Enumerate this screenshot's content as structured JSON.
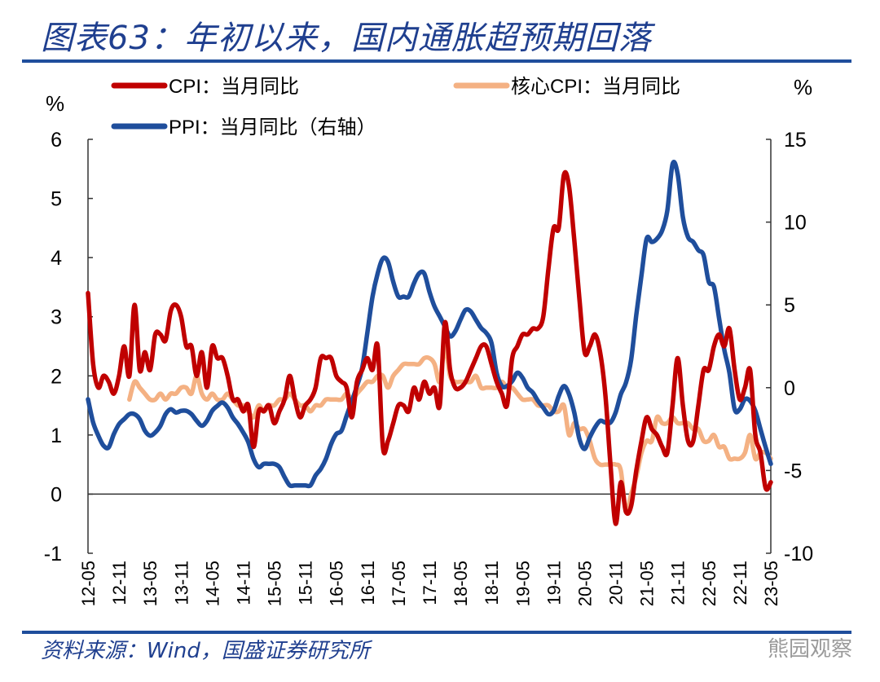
{
  "header": {
    "title": "图表63：年初以来，国内通胀超预期回落"
  },
  "footer": {
    "source": "资料来源：Wind，国盛证券研究所",
    "watermark": "熊园观察"
  },
  "chart_data": {
    "type": "line",
    "left_unit": "%",
    "right_unit": "%",
    "left_ylim": [
      -1,
      6
    ],
    "left_ticks": [
      "6",
      "5",
      "4",
      "3",
      "2",
      "1",
      "0",
      "-1"
    ],
    "right_ylim": [
      -10,
      15
    ],
    "right_ticks": [
      "15",
      "10",
      "5",
      "0",
      "-5",
      "-10"
    ],
    "x_start": "2012-05",
    "x_tick_labels": [
      "12-05",
      "12-11",
      "13-05",
      "13-11",
      "14-05",
      "14-11",
      "15-05",
      "15-11",
      "16-05",
      "16-11",
      "17-05",
      "17-11",
      "18-05",
      "18-11",
      "19-05",
      "19-11",
      "20-05",
      "20-11",
      "21-05",
      "21-11",
      "22-05",
      "22-11",
      "23-05"
    ],
    "grid": false,
    "legend_placement": "top",
    "series": [
      {
        "name": "CPI：当月同比",
        "axis": "left",
        "color": "#C00000",
        "values": [
          3.4,
          2.2,
          1.8,
          2.0,
          1.9,
          1.7,
          2.0,
          2.5,
          2.0,
          3.2,
          2.1,
          2.4,
          2.1,
          2.7,
          2.7,
          2.6,
          3.1,
          3.2,
          3.0,
          2.5,
          2.5,
          2.0,
          2.4,
          1.8,
          2.5,
          2.3,
          2.3,
          2.0,
          1.6,
          1.6,
          1.4,
          1.5,
          0.8,
          1.4,
          1.4,
          1.5,
          1.2,
          1.4,
          1.6,
          2.0,
          1.6,
          1.3,
          1.5,
          1.6,
          1.8,
          2.3,
          2.3,
          2.3,
          2.0,
          1.9,
          1.8,
          1.3,
          1.9,
          2.1,
          2.3,
          2.1,
          2.5,
          0.8,
          0.9,
          1.2,
          1.5,
          1.5,
          1.4,
          1.8,
          1.6,
          1.9,
          1.7,
          1.8,
          1.5,
          2.9,
          2.1,
          1.8,
          1.8,
          1.9,
          2.1,
          2.3,
          2.5,
          2.5,
          2.2,
          1.9,
          1.7,
          1.5,
          2.3,
          2.5,
          2.7,
          2.7,
          2.8,
          2.8,
          3.0,
          3.8,
          4.5,
          4.5,
          5.4,
          5.2,
          4.3,
          3.3,
          2.4,
          2.5,
          2.7,
          2.4,
          1.7,
          0.5,
          -0.5,
          0.2,
          -0.3,
          -0.2,
          0.4,
          0.9,
          1.3,
          1.1,
          1.0,
          0.8,
          0.7,
          1.5,
          2.3,
          1.5,
          0.9,
          0.9,
          1.5,
          2.1,
          2.1,
          2.5,
          2.7,
          2.5,
          2.8,
          2.1,
          1.6,
          1.8,
          2.1,
          1.0,
          0.7,
          0.1,
          0.2
        ]
      },
      {
        "name": "核心CPI：当月同比",
        "axis": "left",
        "color": "#F4B183",
        "values": [
          null,
          null,
          null,
          null,
          null,
          null,
          null,
          null,
          1.6,
          1.9,
          1.8,
          1.7,
          1.6,
          1.6,
          1.7,
          1.6,
          1.7,
          1.7,
          1.8,
          1.8,
          1.7,
          2.0,
          1.7,
          1.6,
          1.7,
          1.6,
          1.6,
          1.7,
          1.6,
          1.5,
          1.5,
          1.4,
          1.3,
          1.5,
          1.4,
          1.5,
          1.5,
          1.6,
          1.6,
          1.7,
          1.6,
          1.5,
          1.5,
          1.4,
          1.5,
          1.5,
          1.6,
          1.6,
          1.6,
          1.6,
          1.7,
          1.6,
          1.7,
          1.8,
          1.9,
          1.9,
          2.0,
          2.0,
          1.8,
          2.0,
          2.1,
          2.2,
          2.2,
          2.2,
          2.2,
          2.3,
          2.3,
          2.2,
          1.9,
          2.5,
          2.0,
          1.9,
          1.9,
          1.9,
          1.9,
          2.0,
          1.8,
          1.8,
          1.8,
          1.8,
          1.9,
          1.8,
          1.8,
          1.7,
          1.6,
          1.6,
          1.6,
          1.5,
          1.5,
          1.5,
          1.4,
          1.4,
          1.5,
          1.0,
          1.2,
          1.1,
          1.1,
          0.9,
          0.6,
          0.5,
          0.5,
          0.5,
          0.5,
          0.4,
          -0.3,
          0.0,
          0.3,
          0.7,
          0.9,
          0.9,
          1.3,
          1.2,
          1.2,
          1.3,
          1.2,
          1.2,
          1.2,
          1.1,
          1.1,
          0.9,
          0.9,
          1.0,
          0.8,
          0.8,
          0.6,
          0.6,
          0.6,
          0.7,
          1.0,
          0.6,
          0.7,
          0.7,
          0.6
        ]
      },
      {
        "name": "PPI：当月同比（右轴）",
        "axis": "right",
        "color": "#1F4E9C",
        "values": [
          -0.7,
          -2.1,
          -2.9,
          -3.5,
          -3.6,
          -2.8,
          -2.2,
          -1.9,
          -1.6,
          -1.6,
          -1.9,
          -2.6,
          -2.9,
          -2.7,
          -2.3,
          -1.6,
          -1.3,
          -1.5,
          -1.4,
          -1.4,
          -1.6,
          -2.0,
          -2.3,
          -2.0,
          -1.4,
          -1.1,
          -0.9,
          -1.2,
          -1.8,
          -2.2,
          -2.7,
          -3.3,
          -4.3,
          -4.8,
          -4.6,
          -4.6,
          -4.6,
          -4.8,
          -5.4,
          -5.9,
          -5.9,
          -5.9,
          -5.9,
          -5.9,
          -5.3,
          -4.9,
          -4.3,
          -3.4,
          -2.8,
          -2.6,
          -1.7,
          -0.8,
          0.1,
          1.2,
          3.3,
          5.5,
          6.9,
          7.8,
          7.6,
          6.4,
          5.5,
          5.5,
          5.5,
          6.3,
          6.9,
          6.9,
          5.8,
          4.9,
          4.3,
          3.7,
          3.1,
          3.4,
          4.1,
          4.7,
          4.6,
          4.1,
          3.6,
          3.3,
          2.7,
          0.9,
          0.1,
          0.1,
          0.4,
          0.9,
          0.6,
          0.0,
          -0.3,
          -0.8,
          -1.2,
          -1.6,
          -1.4,
          -0.5,
          0.1,
          -0.4,
          -1.5,
          -3.1,
          -3.7,
          -3.0,
          -2.4,
          -2.0,
          -2.1,
          -2.1,
          -1.5,
          -0.4,
          0.3,
          1.7,
          4.4,
          6.8,
          9.0,
          8.8,
          9.0,
          9.5,
          10.7,
          13.5,
          12.9,
          10.3,
          9.1,
          8.8,
          8.3,
          8.0,
          6.4,
          6.1,
          4.2,
          2.3,
          0.9,
          -1.3,
          -1.3,
          -0.7,
          -0.8,
          -1.4,
          -2.5,
          -3.6,
          -4.6
        ]
      }
    ]
  }
}
